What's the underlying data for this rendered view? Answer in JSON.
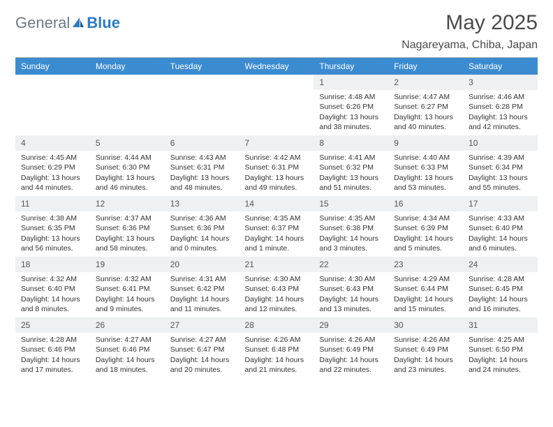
{
  "logo": {
    "gray": "General",
    "blue": "Blue"
  },
  "title": "May 2025",
  "location": "Nagareyama, Chiba, Japan",
  "colors": {
    "header_bg": "#3b8bd0",
    "header_fg": "#ffffff",
    "daynum_bg": "#eef0f1",
    "text": "#333333",
    "logo_gray": "#6b7a85",
    "logo_blue": "#2b7cc4"
  },
  "weekdays": [
    "Sunday",
    "Monday",
    "Tuesday",
    "Wednesday",
    "Thursday",
    "Friday",
    "Saturday"
  ],
  "weeks": [
    [
      null,
      null,
      null,
      null,
      {
        "n": "1",
        "sr": "4:48 AM",
        "ss": "6:26 PM",
        "dl": "13 hours and 38 minutes."
      },
      {
        "n": "2",
        "sr": "4:47 AM",
        "ss": "6:27 PM",
        "dl": "13 hours and 40 minutes."
      },
      {
        "n": "3",
        "sr": "4:46 AM",
        "ss": "6:28 PM",
        "dl": "13 hours and 42 minutes."
      }
    ],
    [
      {
        "n": "4",
        "sr": "4:45 AM",
        "ss": "6:29 PM",
        "dl": "13 hours and 44 minutes."
      },
      {
        "n": "5",
        "sr": "4:44 AM",
        "ss": "6:30 PM",
        "dl": "13 hours and 46 minutes."
      },
      {
        "n": "6",
        "sr": "4:43 AM",
        "ss": "6:31 PM",
        "dl": "13 hours and 48 minutes."
      },
      {
        "n": "7",
        "sr": "4:42 AM",
        "ss": "6:31 PM",
        "dl": "13 hours and 49 minutes."
      },
      {
        "n": "8",
        "sr": "4:41 AM",
        "ss": "6:32 PM",
        "dl": "13 hours and 51 minutes."
      },
      {
        "n": "9",
        "sr": "4:40 AM",
        "ss": "6:33 PM",
        "dl": "13 hours and 53 minutes."
      },
      {
        "n": "10",
        "sr": "4:39 AM",
        "ss": "6:34 PM",
        "dl": "13 hours and 55 minutes."
      }
    ],
    [
      {
        "n": "11",
        "sr": "4:38 AM",
        "ss": "6:35 PM",
        "dl": "13 hours and 56 minutes."
      },
      {
        "n": "12",
        "sr": "4:37 AM",
        "ss": "6:36 PM",
        "dl": "13 hours and 58 minutes."
      },
      {
        "n": "13",
        "sr": "4:36 AM",
        "ss": "6:36 PM",
        "dl": "14 hours and 0 minutes."
      },
      {
        "n": "14",
        "sr": "4:35 AM",
        "ss": "6:37 PM",
        "dl": "14 hours and 1 minute."
      },
      {
        "n": "15",
        "sr": "4:35 AM",
        "ss": "6:38 PM",
        "dl": "14 hours and 3 minutes."
      },
      {
        "n": "16",
        "sr": "4:34 AM",
        "ss": "6:39 PM",
        "dl": "14 hours and 5 minutes."
      },
      {
        "n": "17",
        "sr": "4:33 AM",
        "ss": "6:40 PM",
        "dl": "14 hours and 6 minutes."
      }
    ],
    [
      {
        "n": "18",
        "sr": "4:32 AM",
        "ss": "6:40 PM",
        "dl": "14 hours and 8 minutes."
      },
      {
        "n": "19",
        "sr": "4:32 AM",
        "ss": "6:41 PM",
        "dl": "14 hours and 9 minutes."
      },
      {
        "n": "20",
        "sr": "4:31 AM",
        "ss": "6:42 PM",
        "dl": "14 hours and 11 minutes."
      },
      {
        "n": "21",
        "sr": "4:30 AM",
        "ss": "6:43 PM",
        "dl": "14 hours and 12 minutes."
      },
      {
        "n": "22",
        "sr": "4:30 AM",
        "ss": "6:43 PM",
        "dl": "14 hours and 13 minutes."
      },
      {
        "n": "23",
        "sr": "4:29 AM",
        "ss": "6:44 PM",
        "dl": "14 hours and 15 minutes."
      },
      {
        "n": "24",
        "sr": "4:28 AM",
        "ss": "6:45 PM",
        "dl": "14 hours and 16 minutes."
      }
    ],
    [
      {
        "n": "25",
        "sr": "4:28 AM",
        "ss": "6:46 PM",
        "dl": "14 hours and 17 minutes."
      },
      {
        "n": "26",
        "sr": "4:27 AM",
        "ss": "6:46 PM",
        "dl": "14 hours and 18 minutes."
      },
      {
        "n": "27",
        "sr": "4:27 AM",
        "ss": "6:47 PM",
        "dl": "14 hours and 20 minutes."
      },
      {
        "n": "28",
        "sr": "4:26 AM",
        "ss": "6:48 PM",
        "dl": "14 hours and 21 minutes."
      },
      {
        "n": "29",
        "sr": "4:26 AM",
        "ss": "6:49 PM",
        "dl": "14 hours and 22 minutes."
      },
      {
        "n": "30",
        "sr": "4:26 AM",
        "ss": "6:49 PM",
        "dl": "14 hours and 23 minutes."
      },
      {
        "n": "31",
        "sr": "4:25 AM",
        "ss": "6:50 PM",
        "dl": "14 hours and 24 minutes."
      }
    ]
  ],
  "labels": {
    "sunrise": "Sunrise: ",
    "sunset": "Sunset: ",
    "daylight": "Daylight: "
  }
}
